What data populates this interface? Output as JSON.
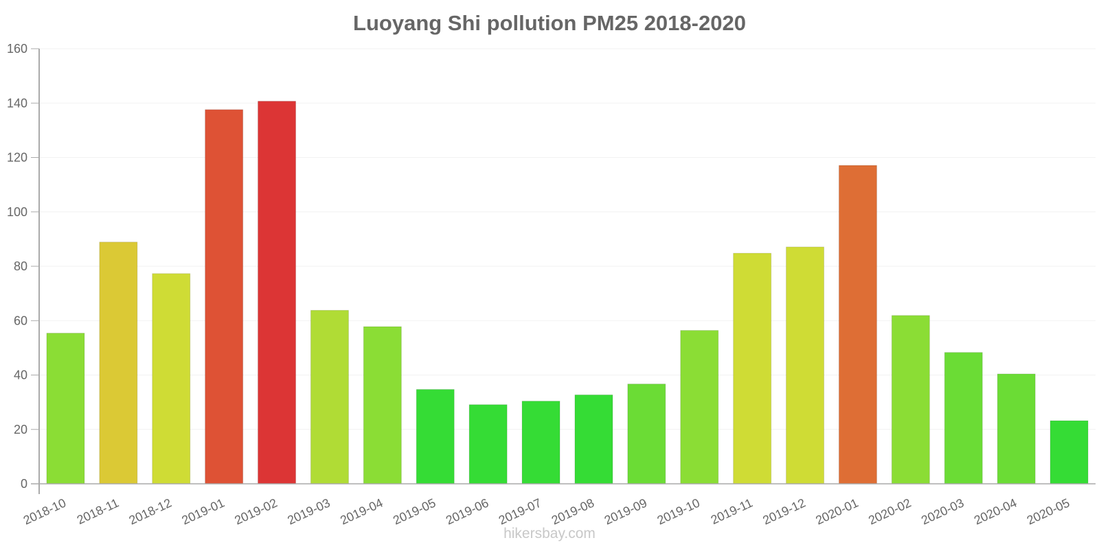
{
  "chart_data": {
    "type": "bar",
    "title": "Luoyang Shi pollution PM25 2018-2020",
    "xlabel": "",
    "ylabel": "",
    "ylim": [
      0,
      160
    ],
    "yticks": [
      0,
      20,
      40,
      60,
      80,
      100,
      120,
      140,
      160
    ],
    "grid": true,
    "legend": null,
    "categories": [
      "2018-10",
      "2018-11",
      "2018-12",
      "2019-01",
      "2019-02",
      "2019-03",
      "2019-04",
      "2019-05",
      "2019-06",
      "2019-07",
      "2019-08",
      "2019-09",
      "2019-10",
      "2019-11",
      "2019-12",
      "2020-01",
      "2020-02",
      "2020-03",
      "2020-04",
      "2020-05"
    ],
    "values": [
      55.4,
      88.9,
      77.3,
      137.6,
      140.7,
      63.8,
      57.8,
      34.7,
      29.1,
      30.4,
      32.7,
      36.7,
      56.4,
      84.8,
      87.1,
      117.1,
      61.9,
      48.3,
      40.4,
      23.2
    ],
    "colors": [
      "#8bdd35",
      "#dbc935",
      "#cfdc35",
      "#de5235",
      "#dc3535",
      "#b0dc35",
      "#8bdd35",
      "#35dc35",
      "#35dc35",
      "#35dc35",
      "#35dc35",
      "#6bdc35",
      "#8bdd35",
      "#cfdc35",
      "#cfdc35",
      "#de6e35",
      "#8bdd35",
      "#6bdc35",
      "#6bdc35",
      "#35dc35"
    ]
  },
  "footer": {
    "text": "hikersbay.com"
  },
  "style": {
    "text_color": "#666666",
    "axis_color": "#aaaaaa",
    "grid_color": "#f2f2f2",
    "footer_color": "#c8c8c8"
  }
}
